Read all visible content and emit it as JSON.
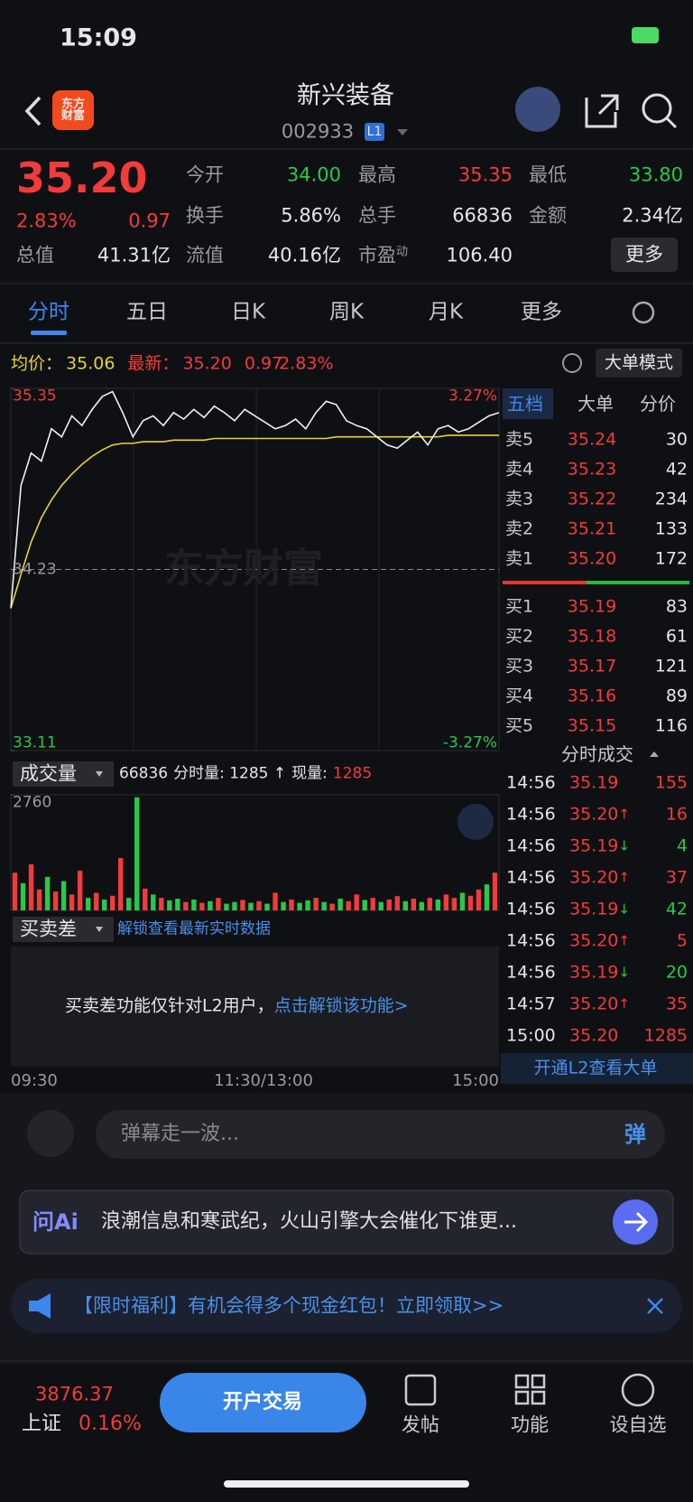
{
  "status_bar": {
    "time": "15:09"
  },
  "header": {
    "logo": "东方财富",
    "title": "新兴装备",
    "code": "002933",
    "level": "L1"
  },
  "quote": {
    "price": "35.20",
    "change_pct": "2.83%",
    "change": "0.97",
    "fields": [
      {
        "label": "今开",
        "value": "34.00"
      },
      {
        "label": "最高",
        "value": "35.35"
      },
      {
        "label": "最低",
        "value": "33.80"
      },
      {
        "label": "换手",
        "value": "5.86%"
      },
      {
        "label": "总手",
        "value": "66836"
      },
      {
        "label": "金额",
        "value": "2.34亿"
      },
      {
        "label": "总值",
        "value": "41.31亿"
      },
      {
        "label": "流值",
        "value": "40.16亿"
      },
      {
        "label": "市盈",
        "sup": "动",
        "value": "106.40"
      }
    ],
    "more_button": "更多"
  },
  "tabs": [
    "分时",
    "五日",
    "日K",
    "周K",
    "月K",
    "更多"
  ],
  "intraday": {
    "avg_label": "均价：",
    "avg": "35.06",
    "latest_label": "最新：",
    "latest": "35.20",
    "change": "0.97",
    "change_pct": "2.83%",
    "mode_button": "大单模式",
    "watermark": "东方财富",
    "ylim": [
      33.11,
      35.35
    ],
    "prev_close": 34.23,
    "upper_pct": "3.27%",
    "lower_pct": "-3.27%",
    "price": [
      33.99,
      34.75,
      34.95,
      34.9,
      35.1,
      35.05,
      35.18,
      35.12,
      35.22,
      35.3,
      35.33,
      35.2,
      35.05,
      35.15,
      35.18,
      35.12,
      35.2,
      35.16,
      35.22,
      35.17,
      35.24,
      35.2,
      35.15,
      35.22,
      35.18,
      35.14,
      35.1,
      35.12,
      35.16,
      35.1,
      35.2,
      35.27,
      35.25,
      35.15,
      35.12,
      35.1,
      35.05,
      35.0,
      34.98,
      35.03,
      35.08,
      35.0,
      35.1,
      35.12,
      35.08,
      35.1,
      35.14,
      35.18,
      35.2
    ],
    "avg_price": [
      33.99,
      34.2,
      34.4,
      34.55,
      34.66,
      34.75,
      34.82,
      34.88,
      34.93,
      34.97,
      35.0,
      35.01,
      35.01,
      35.02,
      35.02,
      35.02,
      35.03,
      35.03,
      35.03,
      35.03,
      35.04,
      35.04,
      35.04,
      35.04,
      35.04,
      35.04,
      35.04,
      35.04,
      35.04,
      35.04,
      35.04,
      35.04,
      35.05,
      35.05,
      35.05,
      35.05,
      35.05,
      35.05,
      35.05,
      35.05,
      35.05,
      35.05,
      35.05,
      35.06,
      35.06,
      35.06,
      35.06,
      35.06,
      35.06
    ],
    "volume_title": "成交量",
    "total_volume": "66836",
    "minute_volume_label": "分时量: 1285 ↑",
    "current_volume_label": "现量:",
    "current_volume": "1285",
    "volume_max": 2760,
    "volume": [
      900,
      650,
      1100,
      500,
      800,
      450,
      700,
      380,
      950,
      300,
      420,
      260,
      350,
      1250,
      300,
      2700,
      520,
      380,
      300,
      240,
      280,
      200,
      260,
      180,
      220,
      300,
      160,
      200,
      250,
      180,
      220,
      160,
      420,
      200,
      260,
      180,
      240,
      300,
      200,
      160,
      280,
      220,
      380,
      250,
      300,
      200,
      260,
      340,
      220,
      280,
      200,
      300,
      260,
      380,
      300,
      420,
      350,
      500,
      620,
      900
    ],
    "volume_up": [
      true,
      false,
      true,
      true,
      false,
      true,
      false,
      true,
      true,
      false,
      true,
      false,
      true,
      true,
      false,
      false,
      true,
      false,
      true,
      false,
      false,
      true,
      false,
      true,
      false,
      true,
      false,
      false,
      true,
      false,
      true,
      false,
      true,
      false,
      true,
      false,
      false,
      true,
      false,
      true,
      false,
      true,
      true,
      false,
      true,
      false,
      true,
      true,
      false,
      true,
      false,
      true,
      false,
      true,
      true,
      false,
      true,
      true,
      false,
      true
    ],
    "spread_title": "买卖差",
    "spread_unlock": "解锁查看最新实时数据",
    "spread_message": "买卖差功能仅针对L2用户，",
    "spread_link": "点击解锁该功能>",
    "time_axis": [
      "09:30",
      "11:30/13:00",
      "15:00"
    ]
  },
  "order_book": {
    "tabs": [
      "五档",
      "大单",
      "分价"
    ],
    "asks": [
      {
        "label": "卖5",
        "price": "35.24",
        "volume": "30"
      },
      {
        "label": "卖4",
        "price": "35.23",
        "volume": "42"
      },
      {
        "label": "卖3",
        "price": "35.22",
        "volume": "234"
      },
      {
        "label": "卖2",
        "price": "35.21",
        "volume": "133"
      },
      {
        "label": "卖1",
        "price": "35.20",
        "volume": "172"
      }
    ],
    "bids": [
      {
        "label": "买1",
        "price": "35.19",
        "volume": "83"
      },
      {
        "label": "买2",
        "price": "35.18",
        "volume": "61"
      },
      {
        "label": "买3",
        "price": "35.17",
        "volume": "121"
      },
      {
        "label": "买4",
        "price": "35.16",
        "volume": "89"
      },
      {
        "label": "买5",
        "price": "35.15",
        "volume": "116"
      }
    ]
  },
  "trades": {
    "title": "分时成交",
    "rows": [
      {
        "time": "14:56",
        "price": "35.19",
        "volume": "155"
      },
      {
        "time": "14:56",
        "price": "35.20",
        "arrow": "↑",
        "volume": "16"
      },
      {
        "time": "14:56",
        "price": "35.19",
        "arrow": "↓",
        "volume": "4"
      },
      {
        "time": "14:56",
        "price": "35.20",
        "arrow": "↑",
        "volume": "37"
      },
      {
        "time": "14:56",
        "price": "35.19",
        "arrow": "↓",
        "volume": "42"
      },
      {
        "time": "14:56",
        "price": "35.20",
        "arrow": "↑",
        "volume": "5"
      },
      {
        "time": "14:56",
        "price": "35.19",
        "arrow": "↓",
        "volume": "20"
      },
      {
        "time": "14:57",
        "price": "35.20",
        "arrow": "↑",
        "volume": "35"
      },
      {
        "time": "15:00",
        "price": "35.20",
        "volume": "1285"
      }
    ],
    "footer": "开通L2查看大单"
  },
  "danmaku": {
    "placeholder": "弹幕走一波...",
    "button": "弹"
  },
  "ai": {
    "brand": "问Ai",
    "text": "浪潮信息和寒武纪，火山引擎大会催化下谁更..."
  },
  "banner": {
    "text": "【限时福利】有机会得多个现金红包！立即领取>>"
  },
  "bottom_nav": {
    "index_value": "3876.37",
    "index_name": "上证",
    "index_change": "0.16%",
    "trade_button": "开户交易",
    "items": [
      "发帖",
      "功能",
      "设自选"
    ]
  }
}
